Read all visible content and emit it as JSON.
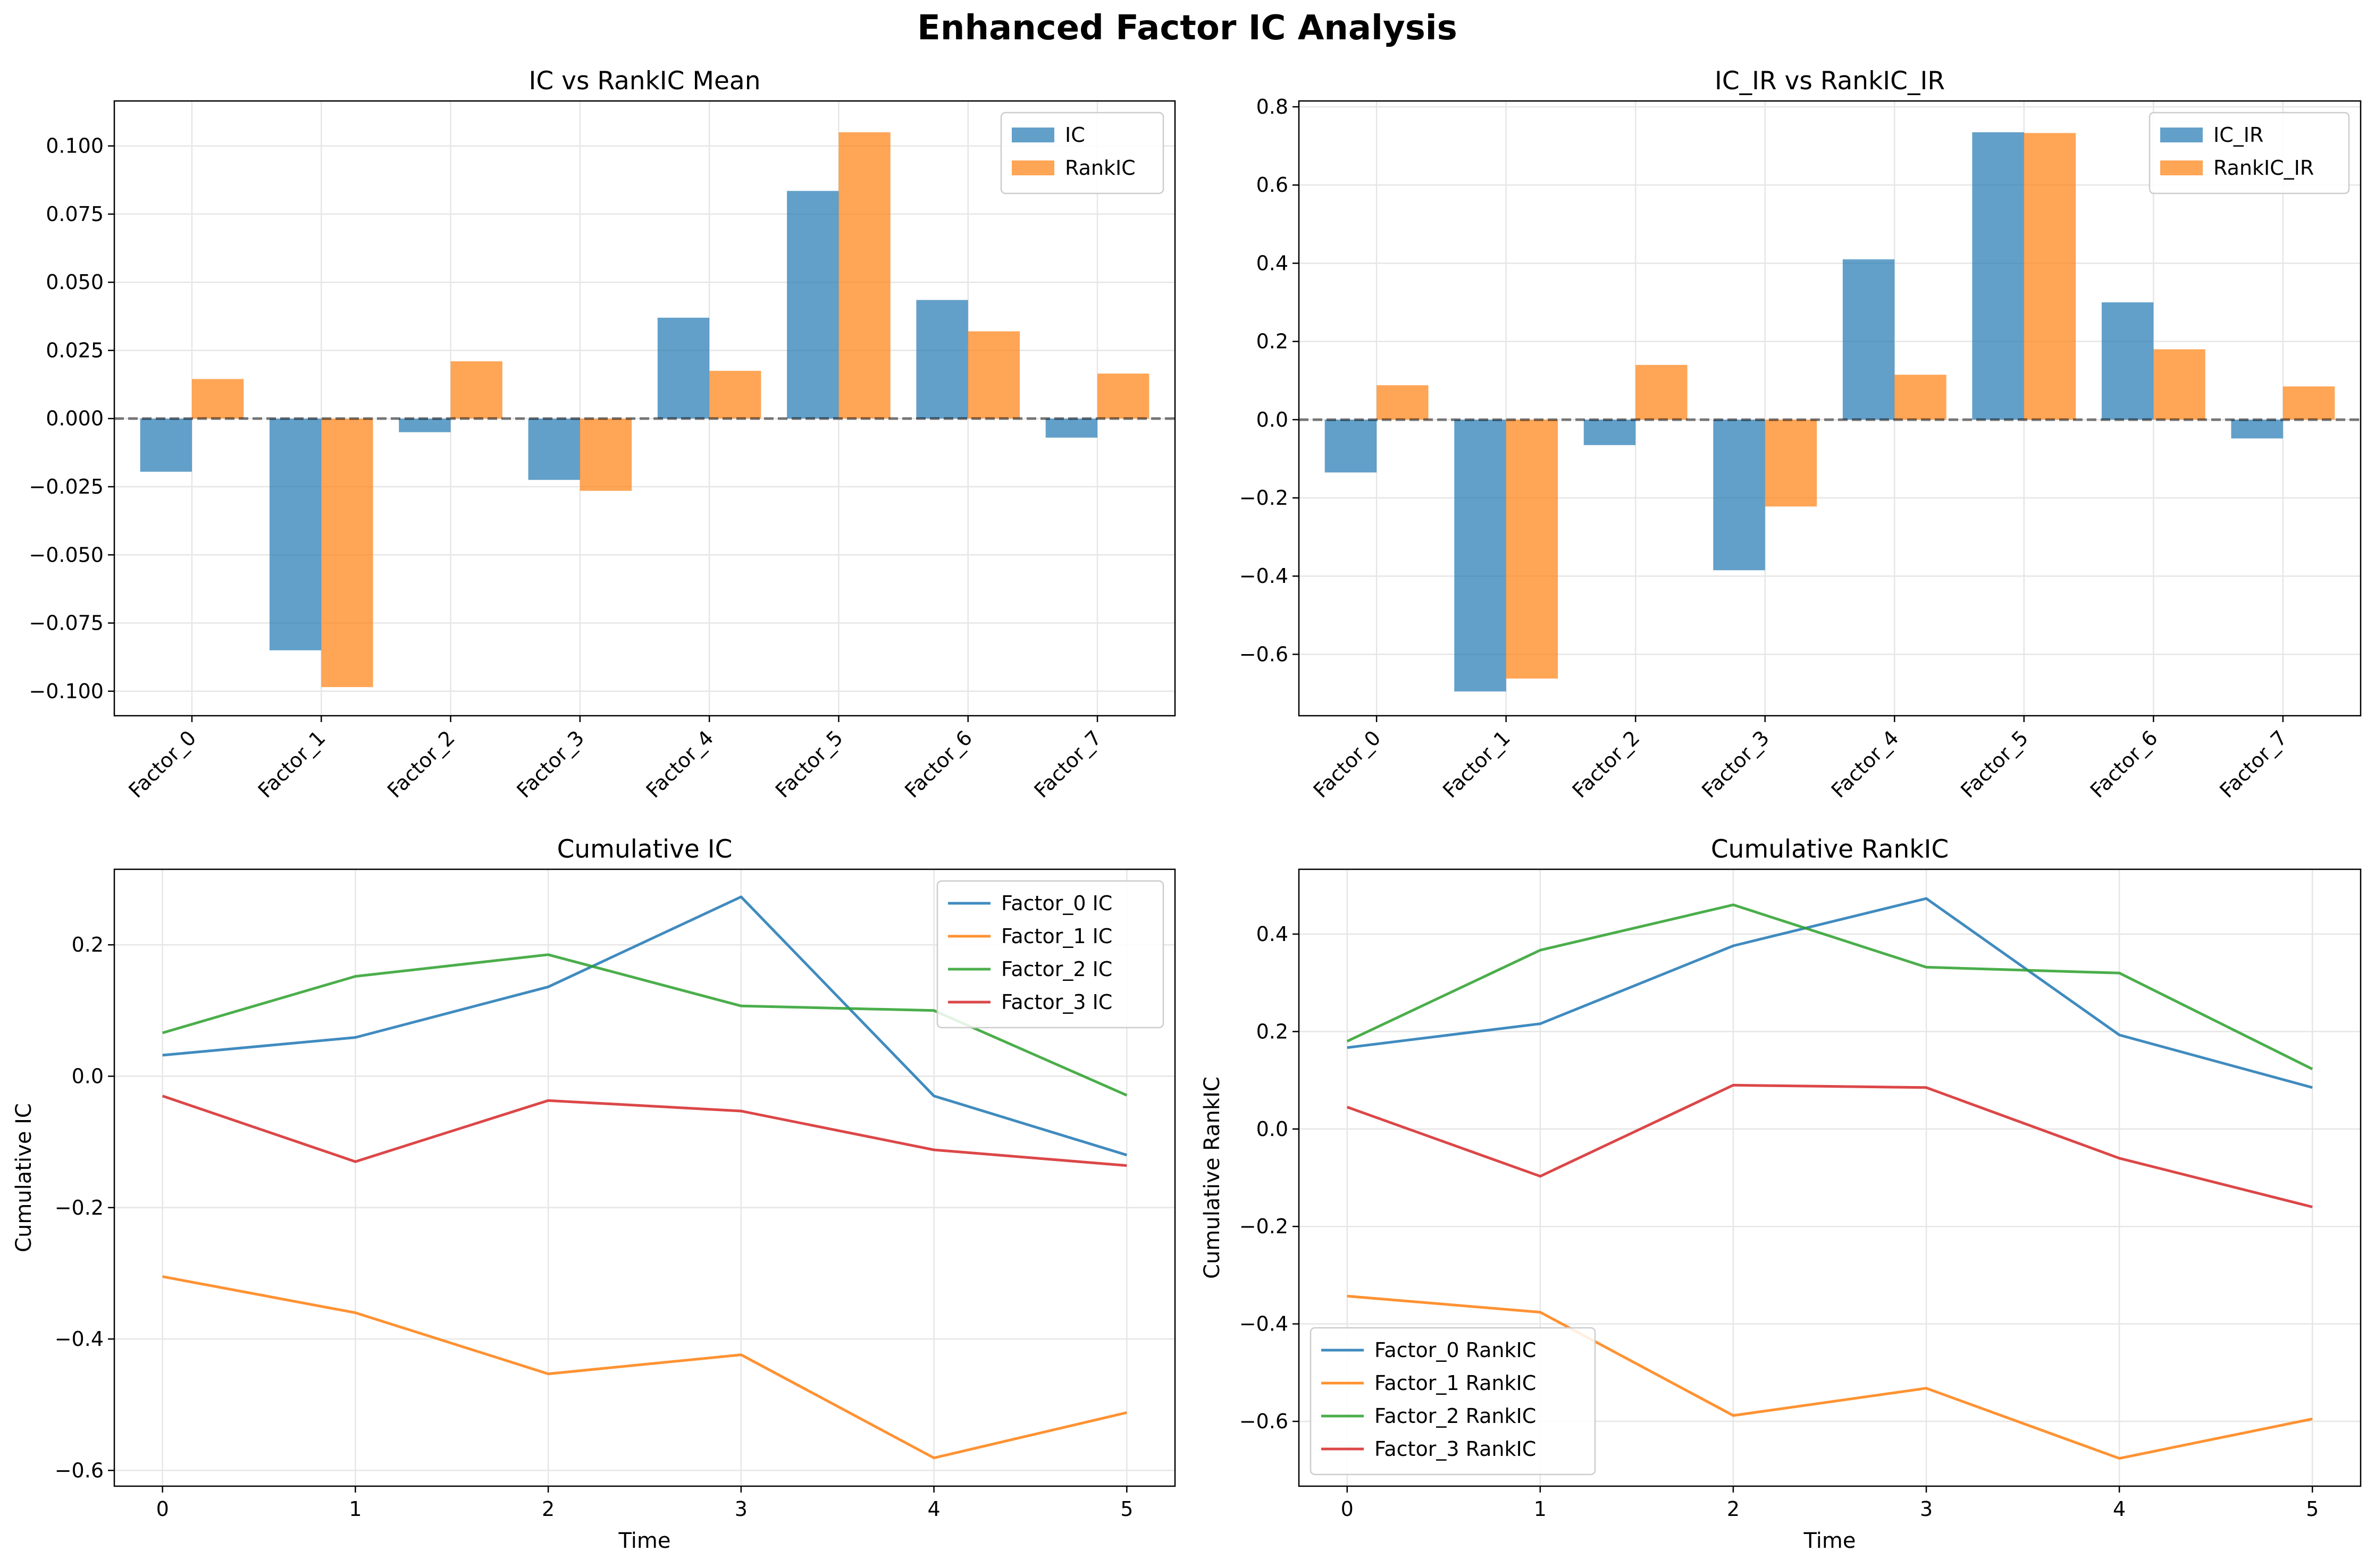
{
  "figure": {
    "title": "Enhanced Factor IC Analysis"
  },
  "colors": {
    "blue": "#1f77b4",
    "orange": "#ff7f0e",
    "green": "#2ca02c",
    "red": "#d62728"
  },
  "chart_data": [
    {
      "type": "bar",
      "title": "IC vs RankIC Mean",
      "xlabel": "",
      "ylabel": "",
      "categories": [
        "Factor_0",
        "Factor_1",
        "Factor_2",
        "Factor_3",
        "Factor_4",
        "Factor_5",
        "Factor_6",
        "Factor_7"
      ],
      "series": [
        {
          "name": "IC",
          "color": "#1f77b4",
          "values": [
            -0.0195,
            -0.085,
            -0.005,
            -0.0225,
            0.037,
            0.0835,
            0.0435,
            -0.007
          ]
        },
        {
          "name": "RankIC",
          "color": "#ff7f0e",
          "values": [
            0.0145,
            -0.0985,
            0.021,
            -0.0265,
            0.0175,
            0.105,
            0.032,
            0.0165
          ]
        }
      ],
      "ylim": [
        -0.109,
        0.1165
      ],
      "yticks": [
        -0.1,
        -0.075,
        -0.05,
        -0.025,
        0.0,
        0.025,
        0.05,
        0.075,
        0.1
      ],
      "ytick_labels": [
        "−0.100",
        "−0.075",
        "−0.050",
        "−0.025",
        "0.000",
        "0.025",
        "0.050",
        "0.075",
        "0.100"
      ],
      "zero_line": true,
      "grid": true,
      "legend": "top-right"
    },
    {
      "type": "bar",
      "title": "IC_IR vs RankIC_IR",
      "xlabel": "",
      "ylabel": "",
      "categories": [
        "Factor_0",
        "Factor_1",
        "Factor_2",
        "Factor_3",
        "Factor_4",
        "Factor_5",
        "Factor_6",
        "Factor_7"
      ],
      "series": [
        {
          "name": "IC_IR",
          "color": "#1f77b4",
          "values": [
            -0.135,
            -0.695,
            -0.065,
            -0.385,
            0.41,
            0.735,
            0.3,
            -0.048
          ]
        },
        {
          "name": "RankIC_IR",
          "color": "#ff7f0e",
          "values": [
            0.088,
            -0.662,
            0.14,
            -0.222,
            0.115,
            0.733,
            0.18,
            0.085
          ]
        }
      ],
      "ylim": [
        -0.757,
        0.815
      ],
      "yticks": [
        -0.6,
        -0.4,
        -0.2,
        0.0,
        0.2,
        0.4,
        0.6,
        0.8
      ],
      "ytick_labels": [
        "−0.6",
        "−0.4",
        "−0.2",
        "0.0",
        "0.2",
        "0.4",
        "0.6",
        "0.8"
      ],
      "zero_line": true,
      "grid": true,
      "legend": "top-right"
    },
    {
      "type": "line",
      "title": "Cumulative IC",
      "xlabel": "Time",
      "ylabel": "Cumulative IC",
      "x": [
        0,
        1,
        2,
        3,
        4,
        5
      ],
      "xlim": [
        -0.25,
        5.25
      ],
      "xtick_labels": [
        "0",
        "1",
        "2",
        "3",
        "4",
        "5"
      ],
      "series": [
        {
          "name": "Factor_0 IC",
          "color": "#1f77b4",
          "values": [
            0.032,
            0.059,
            0.136,
            0.273,
            -0.03,
            -0.12
          ]
        },
        {
          "name": "Factor_1 IC",
          "color": "#ff7f0e",
          "values": [
            -0.305,
            -0.36,
            -0.453,
            -0.424,
            -0.581,
            -0.512
          ]
        },
        {
          "name": "Factor_2 IC",
          "color": "#2ca02c",
          "values": [
            0.066,
            0.152,
            0.185,
            0.107,
            0.1,
            -0.029
          ]
        },
        {
          "name": "Factor_3 IC",
          "color": "#d62728",
          "values": [
            -0.03,
            -0.13,
            -0.037,
            -0.053,
            -0.112,
            -0.136
          ]
        }
      ],
      "ylim": [
        -0.624,
        0.315
      ],
      "yticks": [
        -0.6,
        -0.4,
        -0.2,
        0.0,
        0.2
      ],
      "ytick_labels": [
        "−0.6",
        "−0.4",
        "−0.2",
        "0.0",
        "0.2"
      ],
      "grid": true,
      "legend": "top-right"
    },
    {
      "type": "line",
      "title": "Cumulative RankIC",
      "xlabel": "Time",
      "ylabel": "Cumulative RankIC",
      "x": [
        0,
        1,
        2,
        3,
        4,
        5
      ],
      "xlim": [
        -0.25,
        5.25
      ],
      "xtick_labels": [
        "0",
        "1",
        "2",
        "3",
        "4",
        "5"
      ],
      "series": [
        {
          "name": "Factor_0 RankIC",
          "color": "#1f77b4",
          "values": [
            0.167,
            0.216,
            0.376,
            0.473,
            0.193,
            0.085
          ]
        },
        {
          "name": "Factor_1 RankIC",
          "color": "#ff7f0e",
          "values": [
            -0.343,
            -0.376,
            -0.588,
            -0.532,
            -0.676,
            -0.595
          ]
        },
        {
          "name": "Factor_2 RankIC",
          "color": "#2ca02c",
          "values": [
            0.18,
            0.367,
            0.46,
            0.332,
            0.32,
            0.123
          ]
        },
        {
          "name": "Factor_3 RankIC",
          "color": "#d62728",
          "values": [
            0.045,
            -0.097,
            0.09,
            0.085,
            -0.06,
            -0.16
          ]
        }
      ],
      "ylim": [
        -0.733,
        0.533
      ],
      "yticks": [
        -0.6,
        -0.4,
        -0.2,
        0.0,
        0.2,
        0.4
      ],
      "ytick_labels": [
        "−0.6",
        "−0.4",
        "−0.2",
        "0.0",
        "0.2",
        "0.4"
      ],
      "grid": true,
      "legend": "bottom-left"
    }
  ]
}
